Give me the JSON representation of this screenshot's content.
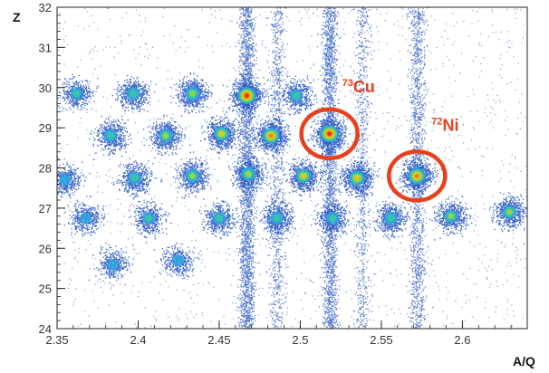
{
  "chart_data": {
    "type": "heatmap",
    "xlabel": "A/Q",
    "ylabel": "Z",
    "xlim": [
      2.35,
      2.64
    ],
    "ylim": [
      24,
      32
    ],
    "x_ticks": [
      2.35,
      2.4,
      2.45,
      2.5,
      2.55,
      2.6
    ],
    "x_tick_labels": [
      "2.35",
      "2.4",
      "2.45",
      "2.5",
      "2.55",
      "2.6"
    ],
    "y_ticks": [
      24,
      25,
      26,
      27,
      28,
      29,
      30,
      31,
      32
    ],
    "y_tick_labels": [
      "24",
      "25",
      "26",
      "27",
      "28",
      "29",
      "30",
      "31",
      "32"
    ],
    "grid": false,
    "point_color": "#1f4fbf",
    "colormap": [
      "#1f4fbf",
      "#2aa7e0",
      "#3cc8a0",
      "#a6d83a",
      "#f2c21b",
      "#f07a1a",
      "#e0261a"
    ],
    "clusters": [
      {
        "x": 2.467,
        "z": 29.8,
        "intensity": 1.0
      },
      {
        "x": 2.4515,
        "z": 28.85,
        "intensity": 0.6
      },
      {
        "x": 2.482,
        "z": 28.8,
        "intensity": 0.85
      },
      {
        "x": 2.518,
        "z": 28.85,
        "intensity": 1.0
      },
      {
        "x": 2.4335,
        "z": 29.85,
        "intensity": 0.55
      },
      {
        "x": 2.4975,
        "z": 29.8,
        "intensity": 0.35
      },
      {
        "x": 2.535,
        "z": 27.75,
        "intensity": 0.7
      },
      {
        "x": 2.572,
        "z": 27.8,
        "intensity": 0.9
      },
      {
        "x": 2.502,
        "z": 27.8,
        "intensity": 0.6
      },
      {
        "x": 2.468,
        "z": 27.85,
        "intensity": 0.55
      },
      {
        "x": 2.4335,
        "z": 27.8,
        "intensity": 0.5
      },
      {
        "x": 2.398,
        "z": 27.75,
        "intensity": 0.4
      },
      {
        "x": 2.417,
        "z": 28.8,
        "intensity": 0.5
      },
      {
        "x": 2.383,
        "z": 28.8,
        "intensity": 0.4
      },
      {
        "x": 2.397,
        "z": 29.85,
        "intensity": 0.4
      },
      {
        "x": 2.362,
        "z": 29.85,
        "intensity": 0.25
      },
      {
        "x": 2.355,
        "z": 27.7,
        "intensity": 0.2
      },
      {
        "x": 2.3675,
        "z": 26.75,
        "intensity": 0.2
      },
      {
        "x": 2.4065,
        "z": 26.75,
        "intensity": 0.3
      },
      {
        "x": 2.45,
        "z": 26.75,
        "intensity": 0.35
      },
      {
        "x": 2.4855,
        "z": 26.75,
        "intensity": 0.4
      },
      {
        "x": 2.52,
        "z": 26.75,
        "intensity": 0.35
      },
      {
        "x": 2.556,
        "z": 26.75,
        "intensity": 0.4
      },
      {
        "x": 2.593,
        "z": 26.8,
        "intensity": 0.45
      },
      {
        "x": 2.629,
        "z": 26.9,
        "intensity": 0.5
      },
      {
        "x": 2.4245,
        "z": 25.7,
        "intensity": 0.2
      },
      {
        "x": 2.3845,
        "z": 25.6,
        "intensity": 0.15
      }
    ],
    "vertical_bands": [
      {
        "x": 2.467,
        "strength": 1.0
      },
      {
        "x": 2.4855,
        "strength": 0.35
      },
      {
        "x": 2.518,
        "strength": 0.9
      },
      {
        "x": 2.538,
        "strength": 0.3
      },
      {
        "x": 2.572,
        "strength": 0.55
      }
    ],
    "annotations": [
      {
        "mass": "73",
        "element": "Cu",
        "x": 2.518,
        "z": 28.85,
        "circle_color": "#e8401c"
      },
      {
        "mass": "72",
        "element": "Ni",
        "x": 2.572,
        "z": 27.8,
        "circle_color": "#e8401c"
      }
    ]
  }
}
